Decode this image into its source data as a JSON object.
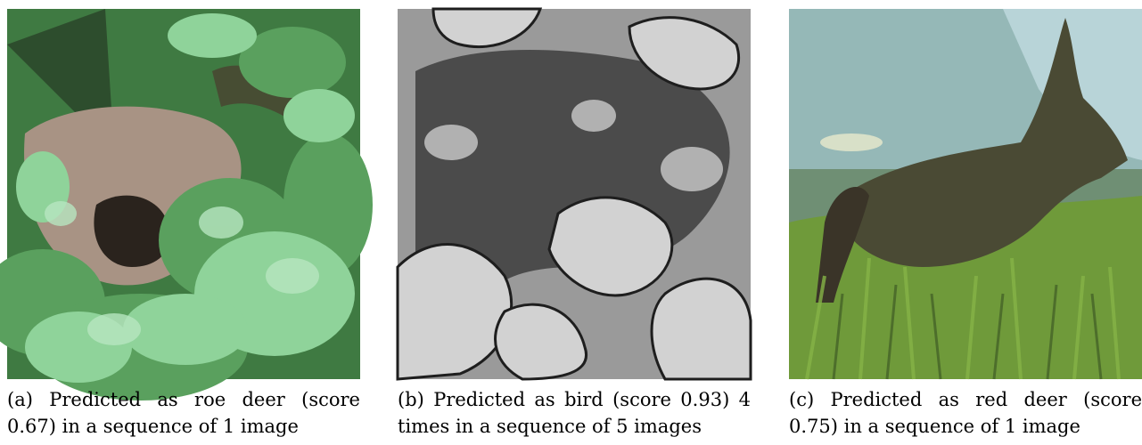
{
  "figure": {
    "panels": [
      {
        "id": "a",
        "caption": "(a) Predicted as roe deer (score 0.67) in a sequence of 1 image",
        "palette": {
          "background": "#3f7a42",
          "foliage_light": "#8fd39a",
          "foliage_mid": "#5aa05e",
          "animal": "#a89384",
          "shadow": "#2a231d"
        }
      },
      {
        "id": "b",
        "caption": "(b) Predicted as bird (score 0.93) 4 times in a sequence of 5 images",
        "palette": {
          "background": "#9a9a9a",
          "animal": "#4b4b4b",
          "foliage_light": "#d2d2d2",
          "outline": "#1e1e1e"
        }
      },
      {
        "id": "c",
        "caption": "(c) Predicted as red deer (score 0.75) in a sequence of 1 image",
        "palette": {
          "background": "#6f8f74",
          "sky": "#9fc2c8",
          "grass": "#6f9a3a",
          "animal": "#4a4a34",
          "highlight": "#d8e0c8"
        }
      }
    ]
  }
}
